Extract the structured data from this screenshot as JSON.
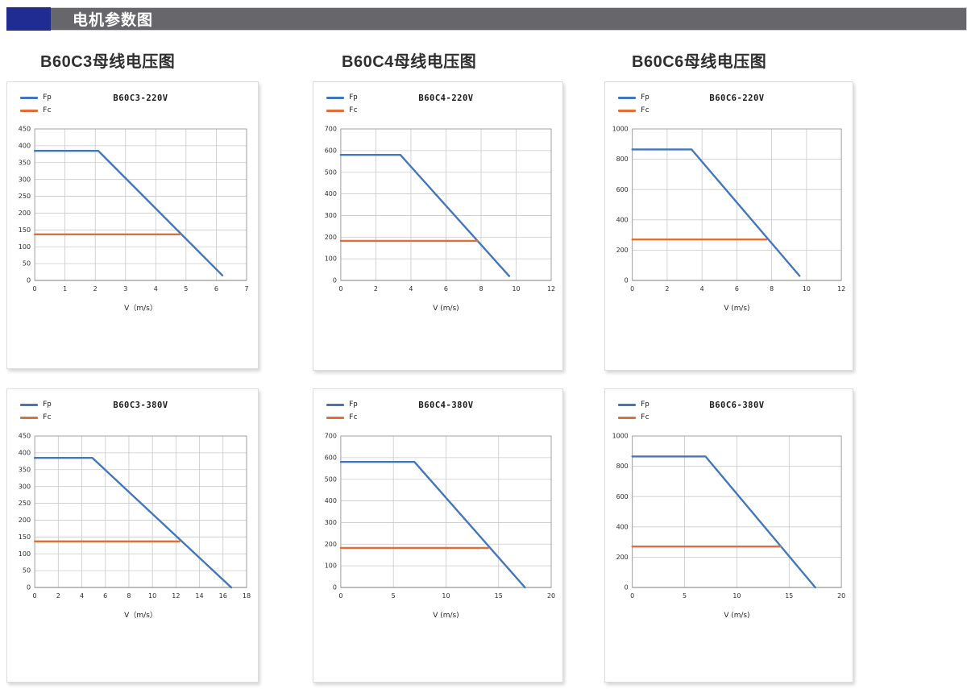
{
  "header": {
    "title": "电机参数图"
  },
  "section_titles": [
    {
      "label": "B60C3母线电压图"
    },
    {
      "label": "B60C4母线电压图"
    },
    {
      "label": "B60C6母线电压图"
    }
  ],
  "legend": {
    "fp": "Fp",
    "fc": "Fc"
  },
  "colors": {
    "fp": "#4377BC",
    "fc": "#E06E36",
    "grid": "#C9C9C9",
    "axis": "#9B9B9B",
    "header_bar": "#66666B",
    "header_accent": "#212C90"
  },
  "chart_data": [
    {
      "type": "line",
      "title": "B60C3-220V",
      "xlabel": "V（m/s）",
      "xlim": [
        0,
        7
      ],
      "xstep": 1,
      "ylim": [
        0,
        450
      ],
      "ystep": 50,
      "legend_position": "top-left",
      "grid": true,
      "series": [
        {
          "name": "Fp",
          "color_key": "fp",
          "points": [
            [
              0,
              385
            ],
            [
              2.1,
              385
            ],
            [
              6.2,
              15
            ]
          ]
        },
        {
          "name": "Fc",
          "color_key": "fc",
          "points": [
            [
              0,
              137
            ],
            [
              4.8,
              137
            ]
          ]
        }
      ]
    },
    {
      "type": "line",
      "title": "B60C4-220V",
      "xlabel": "V (m/s)",
      "xlim": [
        0,
        12
      ],
      "xstep": 2,
      "ylim": [
        0,
        700
      ],
      "ystep": 100,
      "legend_position": "top-left",
      "grid": true,
      "series": [
        {
          "name": "Fp",
          "color_key": "fp",
          "points": [
            [
              0,
              580
            ],
            [
              3.4,
              580
            ],
            [
              9.6,
              20
            ]
          ]
        },
        {
          "name": "Fc",
          "color_key": "fc",
          "points": [
            [
              0,
              183
            ],
            [
              7.8,
              183
            ]
          ]
        }
      ]
    },
    {
      "type": "line",
      "title": "B60C6-220V",
      "xlabel": "V (m/s)",
      "xlim": [
        0,
        12
      ],
      "xstep": 2,
      "ylim": [
        0,
        1000
      ],
      "ystep": 200,
      "legend_position": "top-left",
      "grid": true,
      "series": [
        {
          "name": "Fp",
          "color_key": "fp",
          "points": [
            [
              0,
              865
            ],
            [
              3.4,
              865
            ],
            [
              9.6,
              30
            ]
          ]
        },
        {
          "name": "Fc",
          "color_key": "fc",
          "points": [
            [
              0,
              270
            ],
            [
              7.7,
              270
            ]
          ]
        }
      ]
    },
    {
      "type": "line",
      "title": "B60C3-380V",
      "xlabel": "V（m/s）",
      "xlim": [
        0,
        18
      ],
      "xstep": 2,
      "ylim": [
        0,
        450
      ],
      "ystep": 50,
      "legend_position": "top-left",
      "grid": true,
      "series": [
        {
          "name": "Fp",
          "color_key": "fp",
          "points": [
            [
              0,
              385
            ],
            [
              4.9,
              385
            ],
            [
              16.7,
              0
            ]
          ]
        },
        {
          "name": "Fc",
          "color_key": "fc",
          "points": [
            [
              0,
              137
            ],
            [
              12.3,
              137
            ]
          ]
        }
      ]
    },
    {
      "type": "line",
      "title": "B60C4-380V",
      "xlabel": "V (m/s)",
      "xlim": [
        0,
        20
      ],
      "xstep": 5,
      "ylim": [
        0,
        700
      ],
      "ystep": 100,
      "legend_position": "top-left",
      "grid": true,
      "series": [
        {
          "name": "Fp",
          "color_key": "fp",
          "points": [
            [
              0,
              580
            ],
            [
              7,
              580
            ],
            [
              17.5,
              0
            ]
          ]
        },
        {
          "name": "Fc",
          "color_key": "fc",
          "points": [
            [
              0,
              183
            ],
            [
              14,
              183
            ]
          ]
        }
      ]
    },
    {
      "type": "line",
      "title": "B60C6-380V",
      "xlabel": "V (m/s)",
      "xlim": [
        0,
        20
      ],
      "xstep": 5,
      "ylim": [
        0,
        1000
      ],
      "ystep": 200,
      "legend_position": "top-left",
      "grid": true,
      "series": [
        {
          "name": "Fp",
          "color_key": "fp",
          "points": [
            [
              0,
              865
            ],
            [
              7,
              865
            ],
            [
              17.5,
              0
            ]
          ]
        },
        {
          "name": "Fc",
          "color_key": "fc",
          "points": [
            [
              0,
              270
            ],
            [
              14.2,
              270
            ]
          ]
        }
      ]
    }
  ]
}
